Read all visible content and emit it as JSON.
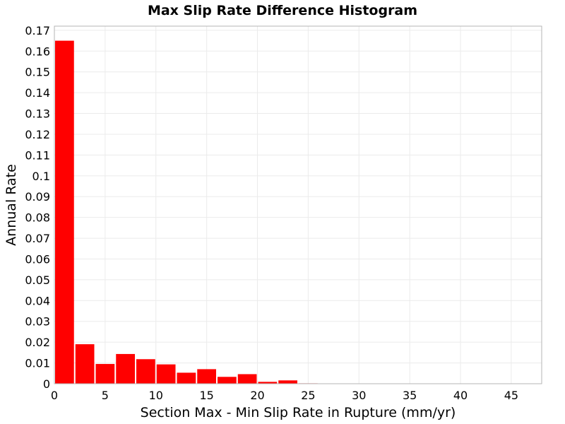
{
  "chart_data": {
    "type": "bar",
    "title": "Max Slip Rate Difference Histogram",
    "xlabel": "Section Max - Min Slip Rate in Rupture (mm/yr)",
    "ylabel": "Annual Rate",
    "xlim": [
      0,
      48
    ],
    "ylim": [
      0,
      0.172
    ],
    "x_ticks": [
      0,
      5,
      10,
      15,
      20,
      25,
      30,
      35,
      40,
      45
    ],
    "y_ticks": [
      0,
      0.01,
      0.02,
      0.03,
      0.04,
      0.05,
      0.06,
      0.07,
      0.08,
      0.09,
      0.1,
      0.11,
      0.12,
      0.13,
      0.14,
      0.15,
      0.16,
      0.17
    ],
    "x_tick_labels": [
      "0",
      "5",
      "10",
      "15",
      "20",
      "25",
      "30",
      "35",
      "40",
      "45"
    ],
    "y_tick_labels": [
      "0",
      "0.01",
      "0.02",
      "0.03",
      "0.04",
      "0.05",
      "0.06",
      "0.07",
      "0.08",
      "0.09",
      "0.1",
      "0.11",
      "0.12",
      "0.13",
      "0.14",
      "0.15",
      "0.16",
      "0.17"
    ],
    "bin_width": 2,
    "bin_centers": [
      1,
      3,
      5,
      7,
      9,
      11,
      13,
      15,
      17,
      19,
      21,
      23,
      25,
      27,
      29,
      31,
      33,
      35,
      37,
      39,
      41,
      43,
      45,
      47
    ],
    "values": [
      0.165,
      0.019,
      0.0095,
      0.0143,
      0.0118,
      0.0093,
      0.0053,
      0.007,
      0.0033,
      0.0046,
      0.0009,
      0.0016,
      0.0002,
      0.0001,
      0.0001,
      0.0001,
      0.0001,
      0.0001,
      0.0001,
      0.0001,
      0.0001,
      0.0001,
      0.0001,
      0.0001
    ],
    "grid": true,
    "colors": {
      "bar": "#ff0000",
      "grid": "#ebebeb",
      "plot_border": "#b4b4b4"
    }
  }
}
